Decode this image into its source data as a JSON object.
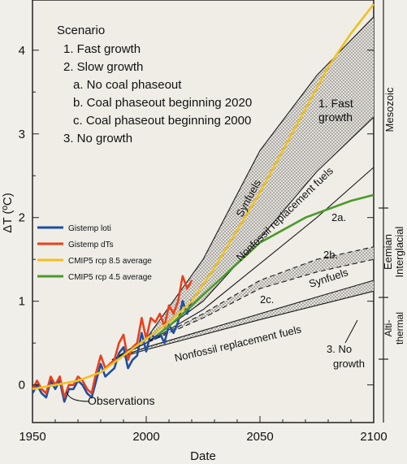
{
  "chart_data": {
    "type": "line",
    "xlabel": "Date",
    "ylabel": "ΔT (ºC)",
    "xlim": [
      1950,
      2100
    ],
    "ylim": [
      -0.45,
      4.6
    ],
    "x_ticks": [
      "1950",
      "2000",
      "2050",
      "2100"
    ],
    "x_tick_values": [
      1950,
      2000,
      2050,
      2100
    ],
    "y_ticks": [
      "0",
      "1",
      "2",
      "3",
      "4"
    ],
    "y_tick_values": [
      0,
      1,
      2,
      3,
      4
    ],
    "scenario_box": {
      "title": "Scenario",
      "lines": [
        "1. Fast growth",
        "2. Slow growth",
        "a. No coal phaseout",
        "b. Coal phaseout beginning 2020",
        "c. Coal phaseout beginning 2000",
        "3. No growth"
      ]
    },
    "legend": {
      "position": "left",
      "entries": [
        {
          "name": "Gistemp loti",
          "color": "#1f4fa0"
        },
        {
          "name": "Gistemp dTs",
          "color": "#e8401c"
        },
        {
          "name": "CMIP5 rcp 8.5 average",
          "color": "#f0c020"
        },
        {
          "name": "CMIP5 rcp 4.5 average",
          "color": "#4a9a2a"
        }
      ]
    },
    "annotations": {
      "fast_growth": [
        "1. Fast",
        "growth"
      ],
      "synfuels_upper": "Synfuels",
      "nonfossil_upper": "Nonfossil replacement fuels",
      "label_2a": "2a.",
      "label_2b": "2b.",
      "label_2c": "2c.",
      "synfuels_lower": "Synfuels",
      "nonfossil_lower": "Nonfossil replacement fuels",
      "no_growth": [
        "3. No",
        "growth"
      ],
      "observations": "Observations"
    },
    "right_axis": {
      "mesozoic": "Mesozoic",
      "eemian": "Eemian",
      "interglacial": "Interglacial",
      "alti": "Alti-",
      "thermal": "thermal"
    },
    "scenario_curves": [
      {
        "name": "1. Fast growth upper",
        "x": [
          1985,
          2000,
          2025,
          2050,
          2075,
          2100
        ],
        "y": [
          0.3,
          0.55,
          1.5,
          2.8,
          3.7,
          4.4
        ]
      },
      {
        "name": "1. Fast growth lower",
        "x": [
          1985,
          2000,
          2025,
          2050,
          2075,
          2100
        ],
        "y": [
          0.3,
          0.5,
          1.0,
          1.75,
          2.55,
          3.2
        ]
      },
      {
        "name": "2a",
        "x": [
          1985,
          2000,
          2025,
          2050,
          2075,
          2100
        ],
        "y": [
          0.3,
          0.5,
          0.9,
          1.45,
          2.0,
          2.6
        ]
      },
      {
        "name": "2b",
        "x": [
          1985,
          2000,
          2025,
          2050,
          2075,
          2100
        ],
        "y": [
          0.3,
          0.5,
          0.85,
          1.25,
          1.5,
          1.65
        ]
      },
      {
        "name": "2c",
        "x": [
          1985,
          2000,
          2025,
          2050,
          2075,
          2100
        ],
        "y": [
          0.3,
          0.5,
          0.8,
          1.15,
          1.35,
          1.5
        ]
      },
      {
        "name": "3. No growth upper",
        "x": [
          1985,
          2000,
          2025,
          2050,
          2075,
          2100
        ],
        "y": [
          0.3,
          0.45,
          0.65,
          0.85,
          1.05,
          1.25
        ]
      },
      {
        "name": "3. No growth lower",
        "x": [
          1985,
          2000,
          2025,
          2050,
          2075,
          2100
        ],
        "y": [
          0.3,
          0.42,
          0.6,
          0.78,
          0.95,
          1.12
        ]
      }
    ],
    "series": [
      {
        "name": "Gistemp loti",
        "color": "#1f4fa0",
        "x": [
          1950,
          1952,
          1954,
          1956,
          1958,
          1960,
          1962,
          1964,
          1966,
          1968,
          1970,
          1972,
          1974,
          1976,
          1978,
          1980,
          1982,
          1984,
          1986,
          1988,
          1990,
          1992,
          1994,
          1996,
          1998,
          2000,
          2002,
          2004,
          2006,
          2008,
          2010,
          2012,
          2014,
          2016,
          2018,
          2020
        ],
        "y": [
          -0.1,
          0.0,
          -0.1,
          -0.15,
          0.05,
          -0.05,
          0.05,
          -0.2,
          -0.05,
          -0.05,
          0.05,
          0.0,
          -0.1,
          -0.15,
          0.05,
          0.25,
          0.1,
          0.15,
          0.2,
          0.38,
          0.45,
          0.2,
          0.3,
          0.35,
          0.62,
          0.4,
          0.62,
          0.55,
          0.62,
          0.5,
          0.72,
          0.62,
          0.75,
          1.0,
          0.85,
          1.02
        ]
      },
      {
        "name": "Gistemp dTs",
        "color": "#e8401c",
        "x": [
          1950,
          1952,
          1954,
          1956,
          1958,
          1960,
          1962,
          1964,
          1966,
          1968,
          1970,
          1972,
          1974,
          1976,
          1978,
          1980,
          1982,
          1984,
          1986,
          1988,
          1990,
          1992,
          1994,
          1996,
          1998,
          2000,
          2002,
          2004,
          2006,
          2008,
          2010,
          2012,
          2014,
          2016,
          2018,
          2020
        ],
        "y": [
          -0.05,
          0.05,
          -0.05,
          -0.1,
          0.1,
          0.0,
          0.1,
          -0.15,
          0.0,
          0.0,
          0.1,
          0.05,
          -0.05,
          -0.1,
          0.15,
          0.35,
          0.2,
          0.25,
          0.3,
          0.5,
          0.6,
          0.3,
          0.45,
          0.5,
          0.8,
          0.55,
          0.8,
          0.75,
          0.85,
          0.7,
          0.95,
          0.85,
          1.0,
          1.3,
          1.15,
          1.25
        ]
      },
      {
        "name": "CMIP5 rcp 8.5 average",
        "color": "#f0c020",
        "x": [
          1950,
          1960,
          1970,
          1980,
          1990,
          2000,
          2010,
          2020,
          2030,
          2040,
          2050,
          2060,
          2070,
          2080,
          2090,
          2100
        ],
        "y": [
          -0.05,
          0.0,
          0.05,
          0.15,
          0.35,
          0.55,
          0.75,
          1.0,
          1.4,
          1.85,
          2.3,
          2.8,
          3.3,
          3.8,
          4.2,
          4.55
        ]
      },
      {
        "name": "CMIP5 rcp 4.5 average",
        "color": "#4a9a2a",
        "x": [
          2005,
          2010,
          2020,
          2030,
          2040,
          2050,
          2060,
          2070,
          2080,
          2090,
          2100
        ],
        "y": [
          0.6,
          0.7,
          0.95,
          1.2,
          1.45,
          1.7,
          1.85,
          2.0,
          2.1,
          2.2,
          2.27
        ]
      }
    ]
  }
}
